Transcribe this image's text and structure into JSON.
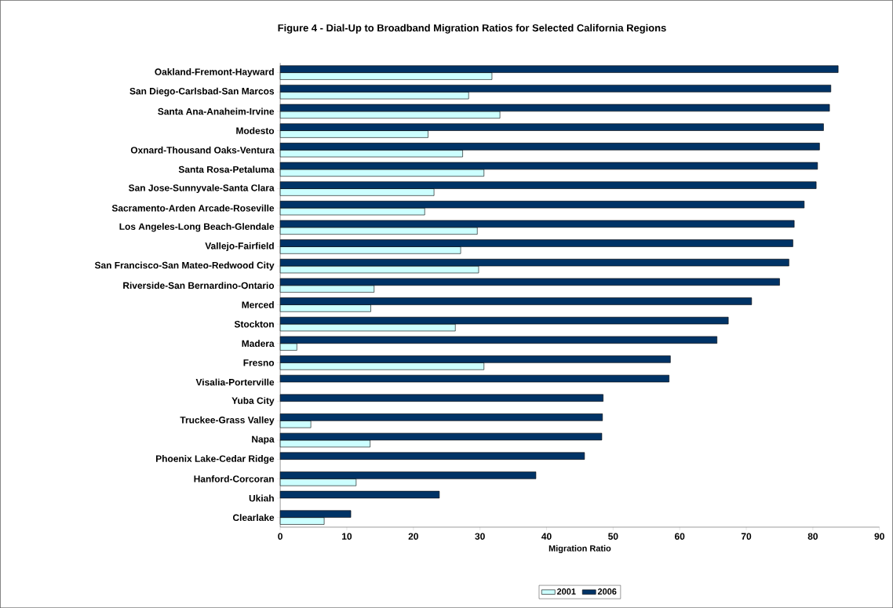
{
  "chart_data": {
    "type": "bar",
    "orientation": "horizontal",
    "title": "Figure 4 - Dial-Up to Broadband Migration Ratios for Selected California Regions",
    "xlabel": "Migration Ratio",
    "categories": [
      "Oakland-Fremont-Hayward",
      "San Diego-Carlsbad-San Marcos",
      "Santa Ana-Anaheim-Irvine",
      "Modesto",
      "Oxnard-Thousand Oaks-Ventura",
      "Santa Rosa-Petaluma",
      "San Jose-Sunnyvale-Santa Clara",
      "Sacramento-Arden Arcade-Roseville",
      "Los Angeles-Long Beach-Glendale",
      "Vallejo-Fairfield",
      "San Francisco-San Mateo-Redwood City",
      "Riverside-San Bernardino-Ontario",
      "Merced",
      "Stockton",
      "Madera",
      "Fresno",
      "Visalia-Porterville",
      "Yuba City",
      "Truckee-Grass Valley",
      "Napa",
      "Phoenix Lake-Cedar Ridge",
      "Hanford-Corcoran",
      "Ukiah",
      "Clearlake"
    ],
    "series": [
      {
        "name": "2001",
        "color": "#ccffff",
        "values": [
          31.8,
          28.3,
          33.0,
          22.2,
          27.4,
          30.6,
          23.1,
          21.7,
          29.6,
          27.1,
          29.8,
          14.1,
          13.6,
          26.3,
          2.5,
          30.6,
          null,
          null,
          4.6,
          13.5,
          null,
          11.4,
          null,
          6.6
        ]
      },
      {
        "name": "2006",
        "color": "#003366",
        "values": [
          83.8,
          82.7,
          82.5,
          81.6,
          81.0,
          80.7,
          80.5,
          78.7,
          77.2,
          77.0,
          76.4,
          75.0,
          70.8,
          67.3,
          65.6,
          58.6,
          58.4,
          48.5,
          48.4,
          48.3,
          45.7,
          38.4,
          23.9,
          10.6
        ]
      }
    ],
    "xlim": [
      0,
      90
    ],
    "xticks": [
      0,
      10,
      20,
      30,
      40,
      50,
      60,
      70,
      80,
      90
    ],
    "grid": false,
    "legend": "bottom"
  }
}
